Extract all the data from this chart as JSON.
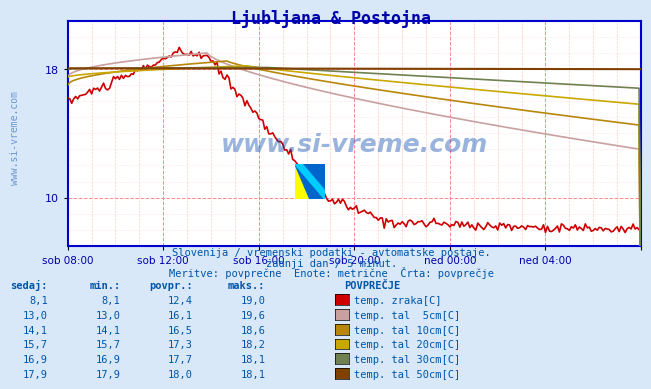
{
  "title": "Ljubljana & Postojna",
  "subtitle1": "Slovenija / vremenski podatki - avtomatske postaje.",
  "subtitle2": "zadnji dan / 5 minut.",
  "subtitle3": "Meritve: povprečne  Enote: metrične  Črta: povprečje",
  "bg_color": "#d8e8f8",
  "plot_bg_color": "#ffffff",
  "title_color": "#0000aa",
  "text_color": "#0055aa",
  "grid_color_major": "#ff0000",
  "grid_color_minor": "#ffaaaa",
  "xlim": [
    0,
    288
  ],
  "ylim": [
    7,
    21
  ],
  "yticks": [
    10,
    18
  ],
  "xlabel_ticks": [
    0,
    48,
    96,
    144,
    192,
    240,
    288
  ],
  "xlabel_labels": [
    "sob 08:00",
    "sob 12:00",
    "sob 16:00",
    "sob 20:00",
    "ned 00:00",
    "ned 04:00",
    ""
  ],
  "watermark": "www.si-vreme.com",
  "legend_entries": [
    {
      "label": "temp. zraka[C]",
      "color": "#cc0000"
    },
    {
      "label": "temp. tal  5cm[C]",
      "color": "#c8a0a0"
    },
    {
      "label": "temp. tal 10cm[C]",
      "color": "#b8860b"
    },
    {
      "label": "temp. tal 20cm[C]",
      "color": "#c8a800"
    },
    {
      "label": "temp. tal 30cm[C]",
      "color": "#708050"
    },
    {
      "label": "temp. tal 50cm[C]",
      "color": "#804000"
    }
  ],
  "table_headers": [
    "sedaj:",
    "min.:",
    "povpr.:",
    "maks.:"
  ],
  "table_data": [
    [
      "8,1",
      "8,1",
      "12,4",
      "19,0"
    ],
    [
      "13,0",
      "13,0",
      "16,1",
      "19,6"
    ],
    [
      "14,1",
      "14,1",
      "16,5",
      "18,6"
    ],
    [
      "15,7",
      "15,7",
      "17,3",
      "18,2"
    ],
    [
      "16,9",
      "16,9",
      "17,7",
      "18,1"
    ],
    [
      "17,9",
      "17,9",
      "18,0",
      "18,1"
    ]
  ]
}
